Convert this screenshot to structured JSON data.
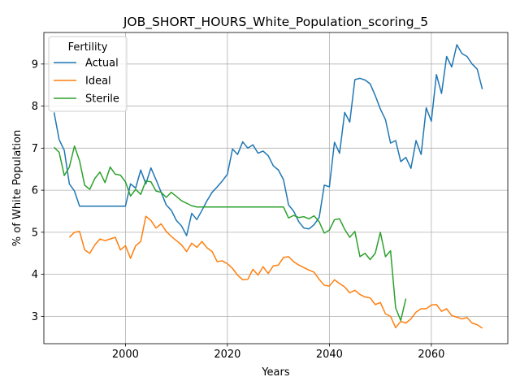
{
  "chart_data": {
    "type": "line",
    "title": "JOB_SHORT_HOURS_White_Population_scoring_5",
    "xlabel": "Years",
    "ylabel": "% of White Population",
    "xlim": [
      1984,
      2075
    ],
    "ylim": [
      2.35,
      9.75
    ],
    "xticks": [
      2000,
      2020,
      2040,
      2060
    ],
    "xtick_labels": [
      "2000",
      "2020",
      "2040",
      "2060"
    ],
    "yticks": [
      3,
      4,
      5,
      6,
      7,
      8,
      9
    ],
    "ytick_labels": [
      "3",
      "4",
      "5",
      "6",
      "7",
      "8",
      "9"
    ],
    "grid": true,
    "legend": {
      "title": "Fertility",
      "placement": "upper-left"
    },
    "series": [
      {
        "name": "Actual",
        "color": "#1f77b4",
        "points": [
          [
            1986,
            7.85
          ],
          [
            1987,
            7.2
          ],
          [
            1988,
            6.95
          ],
          [
            1989,
            6.15
          ],
          [
            1990,
            5.98
          ],
          [
            1991,
            5.62
          ],
          [
            1992,
            5.62
          ],
          [
            1993,
            5.62
          ],
          [
            1994,
            5.62
          ],
          [
            1995,
            5.62
          ],
          [
            1996,
            5.62
          ],
          [
            1997,
            5.62
          ],
          [
            1998,
            5.62
          ],
          [
            1999,
            5.62
          ],
          [
            2000,
            5.62
          ],
          [
            2001,
            6.15
          ],
          [
            2002,
            6.05
          ],
          [
            2003,
            6.48
          ],
          [
            2004,
            6.15
          ],
          [
            2005,
            6.53
          ],
          [
            2006,
            6.25
          ],
          [
            2007,
            5.95
          ],
          [
            2008,
            5.65
          ],
          [
            2009,
            5.52
          ],
          [
            2010,
            5.28
          ],
          [
            2011,
            5.15
          ],
          [
            2012,
            4.92
          ],
          [
            2013,
            5.45
          ],
          [
            2014,
            5.3
          ],
          [
            2015,
            5.52
          ],
          [
            2016,
            5.75
          ],
          [
            2017,
            5.95
          ],
          [
            2018,
            6.08
          ],
          [
            2019,
            6.22
          ],
          [
            2020,
            6.38
          ],
          [
            2021,
            6.98
          ],
          [
            2022,
            6.85
          ],
          [
            2023,
            7.15
          ],
          [
            2024,
            7.0
          ],
          [
            2025,
            7.08
          ],
          [
            2026,
            6.88
          ],
          [
            2027,
            6.93
          ],
          [
            2028,
            6.82
          ],
          [
            2029,
            6.58
          ],
          [
            2030,
            6.48
          ],
          [
            2031,
            6.25
          ],
          [
            2032,
            5.65
          ],
          [
            2033,
            5.5
          ],
          [
            2034,
            5.25
          ],
          [
            2035,
            5.1
          ],
          [
            2036,
            5.08
          ],
          [
            2037,
            5.18
          ],
          [
            2038,
            5.35
          ],
          [
            2039,
            6.12
          ],
          [
            2040,
            6.08
          ],
          [
            2041,
            7.14
          ],
          [
            2042,
            6.88
          ],
          [
            2043,
            7.85
          ],
          [
            2044,
            7.62
          ],
          [
            2045,
            8.63
          ],
          [
            2046,
            8.66
          ],
          [
            2047,
            8.62
          ],
          [
            2048,
            8.53
          ],
          [
            2049,
            8.25
          ],
          [
            2050,
            7.93
          ],
          [
            2051,
            7.68
          ],
          [
            2052,
            7.12
          ],
          [
            2053,
            7.18
          ],
          [
            2054,
            6.68
          ],
          [
            2055,
            6.78
          ],
          [
            2056,
            6.52
          ],
          [
            2057,
            7.18
          ],
          [
            2058,
            6.85
          ],
          [
            2059,
            7.96
          ],
          [
            2060,
            7.64
          ],
          [
            2061,
            8.75
          ],
          [
            2062,
            8.3
          ],
          [
            2063,
            9.18
          ],
          [
            2064,
            8.93
          ],
          [
            2065,
            9.46
          ],
          [
            2066,
            9.25
          ],
          [
            2067,
            9.18
          ],
          [
            2068,
            9.0
          ],
          [
            2069,
            8.88
          ],
          [
            2070,
            8.4
          ]
        ]
      },
      {
        "name": "Ideal",
        "color": "#ff7f0e",
        "points": [
          [
            1989,
            4.88
          ],
          [
            1990,
            5.0
          ],
          [
            1991,
            5.02
          ],
          [
            1992,
            4.58
          ],
          [
            1993,
            4.5
          ],
          [
            1994,
            4.7
          ],
          [
            1995,
            4.84
          ],
          [
            1996,
            4.8
          ],
          [
            1997,
            4.84
          ],
          [
            1998,
            4.88
          ],
          [
            1999,
            4.58
          ],
          [
            2000,
            4.68
          ],
          [
            2001,
            4.38
          ],
          [
            2002,
            4.68
          ],
          [
            2003,
            4.78
          ],
          [
            2004,
            5.38
          ],
          [
            2005,
            5.28
          ],
          [
            2006,
            5.1
          ],
          [
            2007,
            5.2
          ],
          [
            2008,
            5.02
          ],
          [
            2009,
            4.9
          ],
          [
            2010,
            4.8
          ],
          [
            2011,
            4.7
          ],
          [
            2012,
            4.54
          ],
          [
            2013,
            4.74
          ],
          [
            2014,
            4.64
          ],
          [
            2015,
            4.78
          ],
          [
            2016,
            4.63
          ],
          [
            2017,
            4.54
          ],
          [
            2018,
            4.3
          ],
          [
            2019,
            4.32
          ],
          [
            2020,
            4.25
          ],
          [
            2021,
            4.14
          ],
          [
            2022,
            3.98
          ],
          [
            2023,
            3.87
          ],
          [
            2024,
            3.88
          ],
          [
            2025,
            4.12
          ],
          [
            2026,
            3.98
          ],
          [
            2027,
            4.18
          ],
          [
            2028,
            4.02
          ],
          [
            2029,
            4.2
          ],
          [
            2030,
            4.22
          ],
          [
            2031,
            4.4
          ],
          [
            2032,
            4.42
          ],
          [
            2033,
            4.3
          ],
          [
            2034,
            4.22
          ],
          [
            2035,
            4.16
          ],
          [
            2036,
            4.1
          ],
          [
            2037,
            4.05
          ],
          [
            2038,
            3.88
          ],
          [
            2039,
            3.74
          ],
          [
            2040,
            3.72
          ],
          [
            2041,
            3.87
          ],
          [
            2042,
            3.78
          ],
          [
            2043,
            3.7
          ],
          [
            2044,
            3.56
          ],
          [
            2045,
            3.62
          ],
          [
            2046,
            3.52
          ],
          [
            2047,
            3.46
          ],
          [
            2048,
            3.44
          ],
          [
            2049,
            3.28
          ],
          [
            2050,
            3.33
          ],
          [
            2051,
            3.06
          ],
          [
            2052,
            3.0
          ],
          [
            2053,
            2.73
          ],
          [
            2054,
            2.88
          ],
          [
            2055,
            2.84
          ],
          [
            2056,
            2.94
          ],
          [
            2057,
            3.1
          ],
          [
            2058,
            3.18
          ],
          [
            2059,
            3.18
          ],
          [
            2060,
            3.27
          ],
          [
            2061,
            3.28
          ],
          [
            2062,
            3.12
          ],
          [
            2063,
            3.18
          ],
          [
            2064,
            3.02
          ],
          [
            2065,
            2.98
          ],
          [
            2066,
            2.94
          ],
          [
            2067,
            2.97
          ],
          [
            2068,
            2.84
          ],
          [
            2069,
            2.8
          ],
          [
            2070,
            2.72
          ]
        ]
      },
      {
        "name": "Sterile",
        "color": "#2ca02c",
        "points": [
          [
            1986,
            7.02
          ],
          [
            1987,
            6.9
          ],
          [
            1988,
            6.35
          ],
          [
            1989,
            6.55
          ],
          [
            1990,
            7.05
          ],
          [
            1991,
            6.7
          ],
          [
            1992,
            6.12
          ],
          [
            1993,
            6.02
          ],
          [
            1994,
            6.28
          ],
          [
            1995,
            6.43
          ],
          [
            1996,
            6.18
          ],
          [
            1997,
            6.55
          ],
          [
            1998,
            6.38
          ],
          [
            1999,
            6.36
          ],
          [
            2000,
            6.2
          ],
          [
            2001,
            5.86
          ],
          [
            2002,
            6.02
          ],
          [
            2003,
            5.9
          ],
          [
            2004,
            6.22
          ],
          [
            2005,
            6.2
          ],
          [
            2006,
            5.98
          ],
          [
            2007,
            5.95
          ],
          [
            2008,
            5.83
          ],
          [
            2009,
            5.95
          ],
          [
            2010,
            5.85
          ],
          [
            2011,
            5.75
          ],
          [
            2012,
            5.69
          ],
          [
            2013,
            5.63
          ],
          [
            2014,
            5.6
          ],
          [
            2015,
            5.6
          ],
          [
            2016,
            5.6
          ],
          [
            2017,
            5.6
          ],
          [
            2018,
            5.6
          ],
          [
            2019,
            5.6
          ],
          [
            2020,
            5.6
          ],
          [
            2021,
            5.6
          ],
          [
            2022,
            5.6
          ],
          [
            2023,
            5.6
          ],
          [
            2024,
            5.6
          ],
          [
            2025,
            5.6
          ],
          [
            2026,
            5.6
          ],
          [
            2027,
            5.6
          ],
          [
            2028,
            5.6
          ],
          [
            2029,
            5.6
          ],
          [
            2030,
            5.6
          ],
          [
            2031,
            5.6
          ],
          [
            2032,
            5.34
          ],
          [
            2033,
            5.4
          ],
          [
            2034,
            5.35
          ],
          [
            2035,
            5.37
          ],
          [
            2036,
            5.32
          ],
          [
            2037,
            5.39
          ],
          [
            2038,
            5.25
          ],
          [
            2039,
            4.98
          ],
          [
            2040,
            5.05
          ],
          [
            2041,
            5.3
          ],
          [
            2042,
            5.32
          ],
          [
            2043,
            5.07
          ],
          [
            2044,
            4.88
          ],
          [
            2045,
            5.02
          ],
          [
            2046,
            4.42
          ],
          [
            2047,
            4.5
          ],
          [
            2048,
            4.35
          ],
          [
            2049,
            4.5
          ],
          [
            2050,
            5.0
          ],
          [
            2051,
            4.42
          ],
          [
            2052,
            4.56
          ],
          [
            2053,
            3.2
          ],
          [
            2054,
            2.9
          ],
          [
            2055,
            3.42
          ]
        ]
      }
    ]
  }
}
